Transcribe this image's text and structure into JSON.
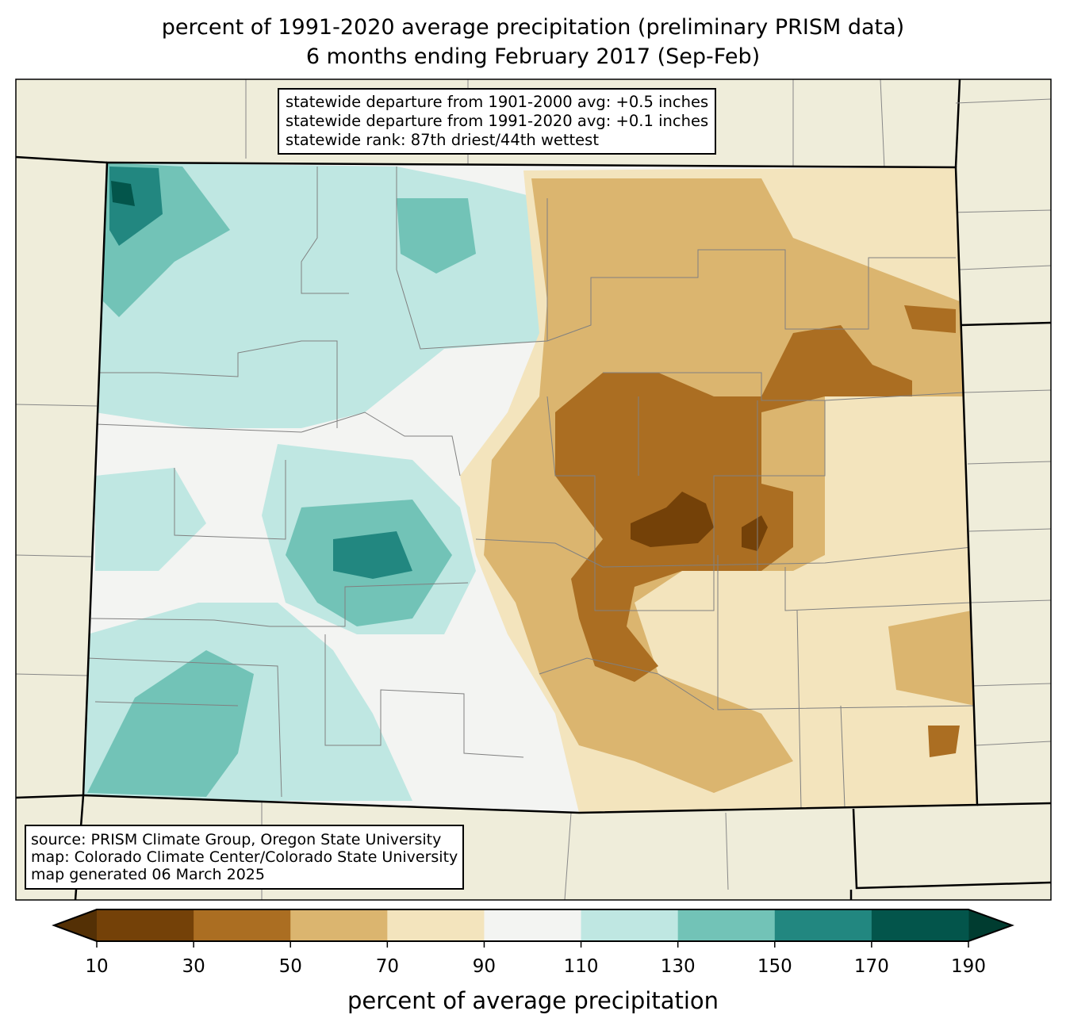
{
  "title": {
    "line1": "percent of 1991-2020 average precipitation (preliminary PRISM data)",
    "line2": "6 months ending February 2017 (Sep-Feb)"
  },
  "stats": {
    "line1": "statewide departure from 1901-2000 avg: +0.5 inches",
    "line2": "statewide departure from 1991-2020 avg: +0.1 inches",
    "line3": "statewide rank: 87th driest/44th wettest"
  },
  "credits": {
    "line1": "source: PRISM Climate Group, Oregon State University",
    "line2": "map: Colorado Climate Center/Colorado State University",
    "line3": "map generated 06 March 2025"
  },
  "colorbar": {
    "title": "percent of average precipitation",
    "ticks": [
      "10",
      "30",
      "50",
      "70",
      "90",
      "110",
      "130",
      "150",
      "170",
      "190"
    ],
    "colors": [
      "#744108",
      "#ab6e22",
      "#dbb56f",
      "#f3e4bd",
      "#f3f4f2",
      "#bfe7e2",
      "#72c3b7",
      "#228780",
      "#03554b"
    ],
    "under_color": "#543005",
    "over_color": "#003c30"
  },
  "colors": {
    "land": "#efedda",
    "state_outline": "#000000",
    "county_lines": "#808080"
  }
}
